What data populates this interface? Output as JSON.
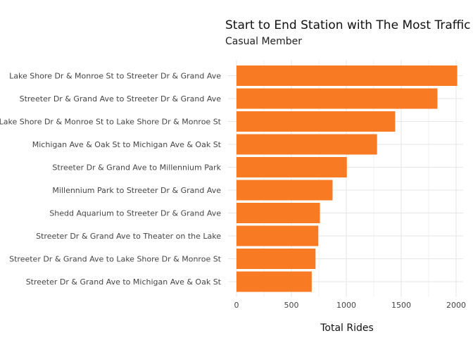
{
  "chart_data": {
    "type": "bar",
    "orientation": "horizontal",
    "title": "Start to End Station with The Most Traffic",
    "subtitle": "Casual Member",
    "xlabel": "Total Rides",
    "ylabel": "",
    "xlim": [
      0,
      2000
    ],
    "xticks": [
      0,
      500,
      1000,
      1500,
      2000
    ],
    "grid": true,
    "bar_color": "#F87A23",
    "categories": [
      "Lake Shore Dr & Monroe St to Streeter Dr & Grand Ave",
      "Streeter Dr & Grand Ave to Streeter Dr & Grand Ave",
      "Lake Shore Dr & Monroe St to Lake Shore Dr & Monroe St",
      "Michigan Ave & Oak St to Michigan Ave & Oak St",
      "Streeter Dr & Grand Ave to Millennium Park",
      "Millennium Park to Streeter Dr & Grand Ave",
      "Shedd Aquarium to Streeter Dr & Grand Ave",
      "Streeter Dr & Grand Ave to Theater on the Lake",
      "Streeter Dr & Grand Ave to Lake Shore Dr & Monroe St",
      "Streeter Dr & Grand Ave to Michigan Ave & Oak St"
    ],
    "values": [
      2010,
      1830,
      1445,
      1280,
      1005,
      875,
      760,
      745,
      720,
      685
    ]
  }
}
